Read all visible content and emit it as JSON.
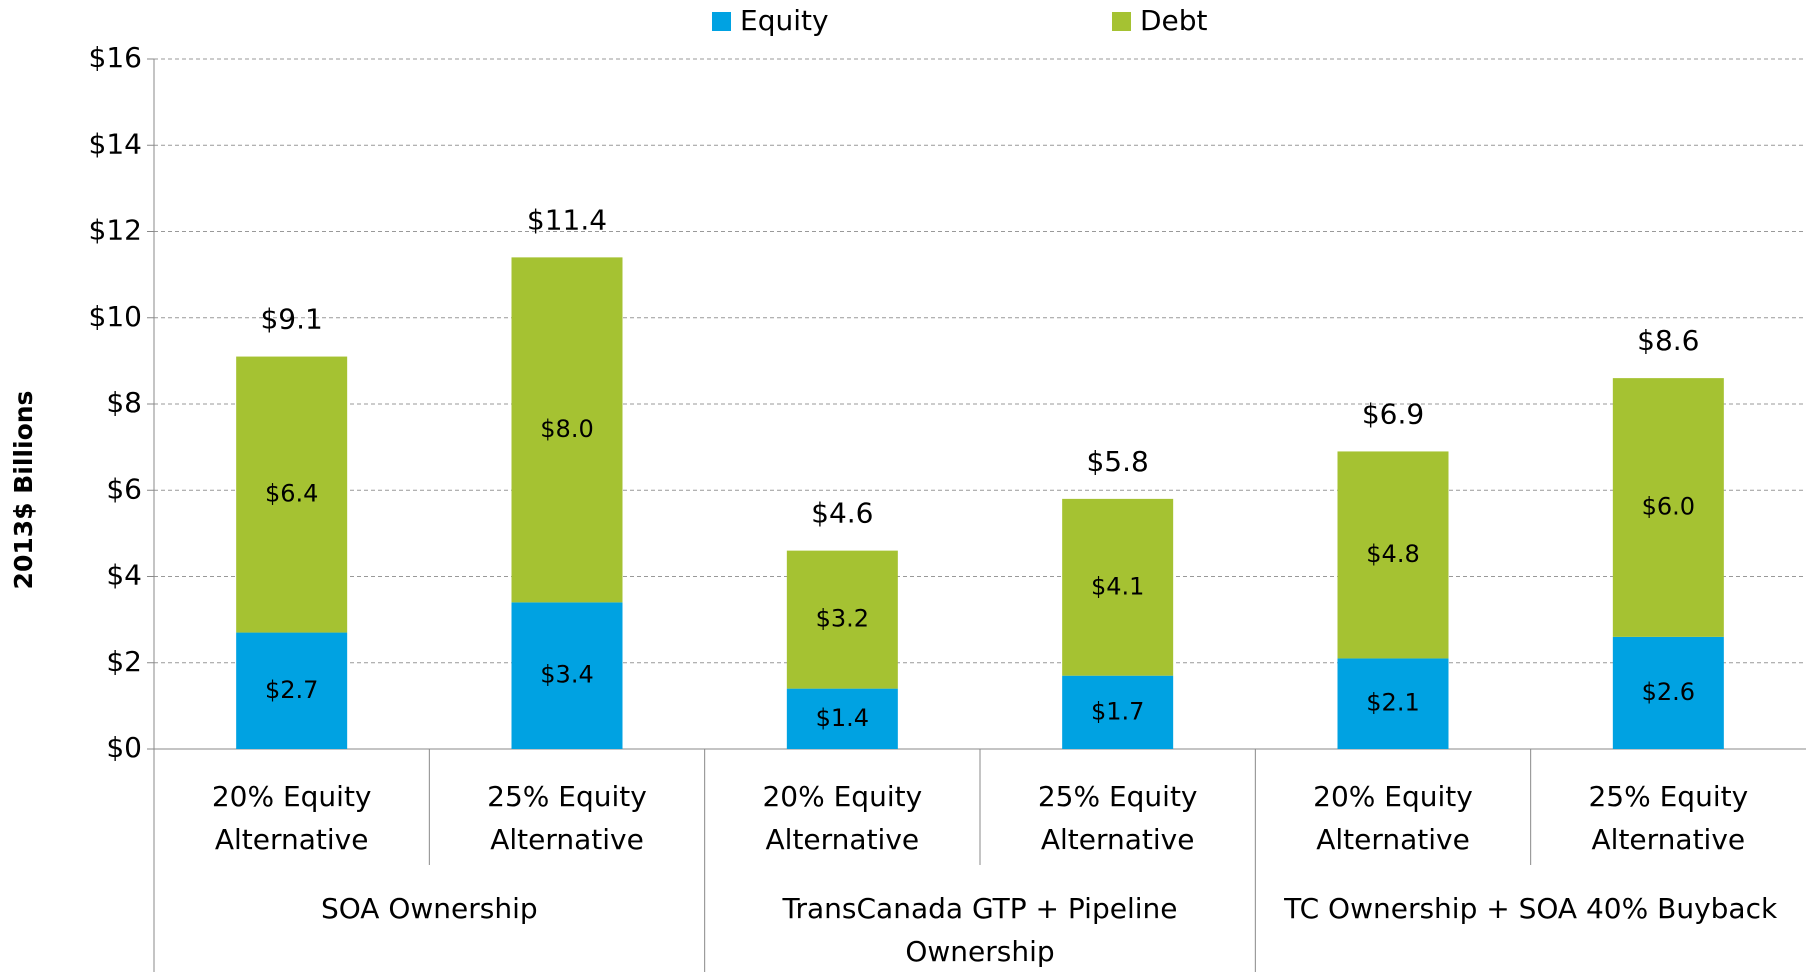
{
  "chart_data": {
    "type": "bar",
    "stacked": true,
    "y_label": "2013$ Billions",
    "categories": [
      [
        "20% Equity",
        "Alternative"
      ],
      [
        "25% Equity",
        "Alternative"
      ],
      [
        "20% Equity",
        "Alternative"
      ],
      [
        "25% Equity",
        "Alternative"
      ],
      [
        "20% Equity",
        "Alternative"
      ],
      [
        "25% Equity",
        "Alternative"
      ]
    ],
    "groups": [
      {
        "name": [
          "SOA Ownership"
        ],
        "size": 2
      },
      {
        "name": [
          "TransCanada GTP + Pipeline",
          "Ownership"
        ],
        "size": 2
      },
      {
        "name": [
          "TC Ownership + SOA 40% Buyback"
        ],
        "size": 2
      }
    ],
    "series": [
      {
        "name": "Equity",
        "color": "#00a2e2",
        "values": [
          2.7,
          3.4,
          1.4,
          1.7,
          2.1,
          2.6
        ],
        "value_labels": [
          "$2.7",
          "$3.4",
          "$1.4",
          "$1.7",
          "$2.1",
          "$2.6"
        ]
      },
      {
        "name": "Debt",
        "color": "#a5c232",
        "values": [
          6.4,
          8.0,
          3.2,
          4.1,
          4.8,
          6.0
        ],
        "value_labels": [
          "$6.4",
          "$8.0",
          "$3.2",
          "$4.1",
          "$4.8",
          "$6.0"
        ]
      }
    ],
    "totals": [
      9.1,
      11.4,
      4.6,
      5.8,
      6.9,
      8.6
    ],
    "total_labels": [
      "$9.1",
      "$11.4",
      "$4.6",
      "$5.8",
      "$6.9",
      "$8.6"
    ],
    "ylim": [
      0,
      16
    ],
    "yticks": [
      {
        "value": 0,
        "label": "$0"
      },
      {
        "value": 2,
        "label": "$2"
      },
      {
        "value": 4,
        "label": "$4"
      },
      {
        "value": 6,
        "label": "$6"
      },
      {
        "value": 8,
        "label": "$8"
      },
      {
        "value": 10,
        "label": "$10"
      },
      {
        "value": 12,
        "label": "$12"
      },
      {
        "value": 14,
        "label": "$14"
      },
      {
        "value": 16,
        "label": "$16"
      }
    ],
    "grid": true,
    "legend": "top"
  }
}
